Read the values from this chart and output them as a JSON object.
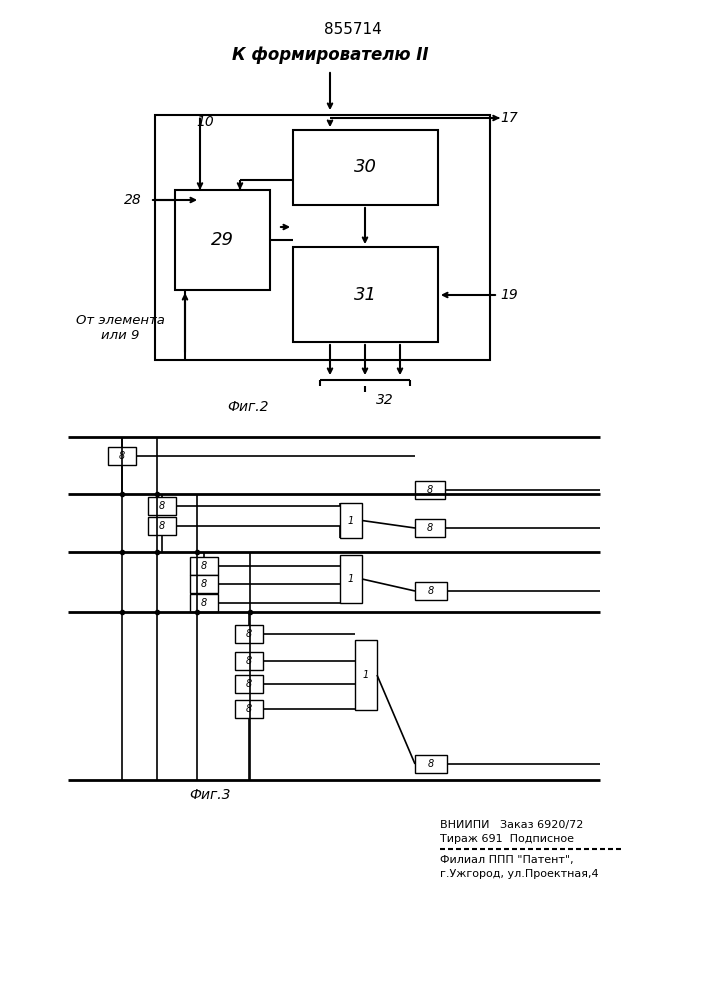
{
  "title": "855714",
  "fig2_label": "Фиг.2",
  "fig3_label": "Фиг.3",
  "top_label": "К формирователю II",
  "left_label": "От элемента\nили 9",
  "label_17": "17",
  "label_28": "28",
  "label_10": "10",
  "label_19": "19",
  "label_29": "29",
  "label_30": "30",
  "label_31": "31",
  "label_32": "32",
  "footer_line1": "ВНИИПИ   Заказ 6920/72",
  "footer_line2": "Тираж 691  Подписное",
  "footer_line3": "Филиал ППП \"Патент\",",
  "footer_line4": "г.Ужгород, ул.Проектная,4",
  "bg_color": "#ffffff",
  "line_color": "#000000"
}
